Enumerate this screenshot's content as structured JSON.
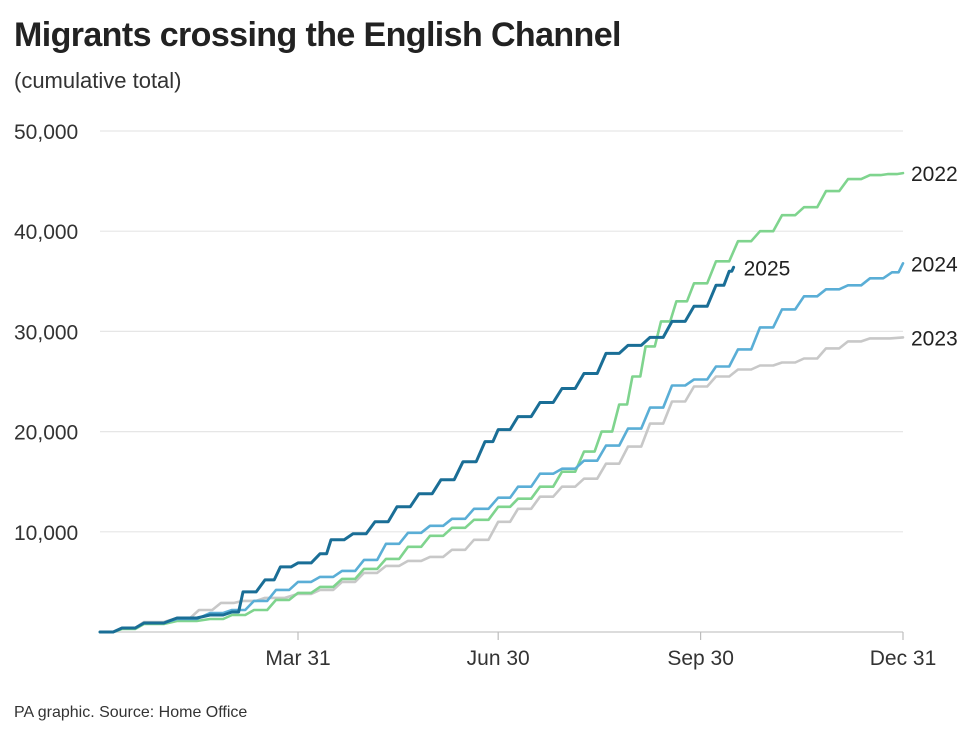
{
  "chart": {
    "title": "Migrants crossing the English Channel",
    "subtitle": "(cumulative total)",
    "source": "PA graphic. Source: Home Office"
  },
  "chart_data": {
    "type": "line",
    "title": "Migrants crossing the English Channel",
    "subtitle": "(cumulative total)",
    "xlabel": "",
    "ylabel": "",
    "xlim": [
      0,
      365
    ],
    "ylim": [
      0,
      50000
    ],
    "x_ticks": [
      {
        "label": "Mar 31",
        "day": 90
      },
      {
        "label": "Jun 30",
        "day": 181
      },
      {
        "label": "Sep 30",
        "day": 273
      },
      {
        "label": "Dec 31",
        "day": 365
      }
    ],
    "y_ticks": [
      10000,
      20000,
      30000,
      40000,
      50000
    ],
    "y_tick_labels": [
      "10,000",
      "20,000",
      "30,000",
      "40,000",
      "50,000"
    ],
    "grid": "horizontal",
    "legend": "direct labels at line ends",
    "x_unit": "day of year",
    "series": [
      {
        "name": "2022",
        "color": "#7fd48e",
        "points": [
          [
            0,
            0
          ],
          [
            10,
            300
          ],
          [
            20,
            800
          ],
          [
            35,
            1100
          ],
          [
            50,
            1300
          ],
          [
            60,
            1700
          ],
          [
            70,
            2200
          ],
          [
            80,
            3200
          ],
          [
            90,
            3900
          ],
          [
            100,
            4500
          ],
          [
            110,
            5300
          ],
          [
            120,
            6300
          ],
          [
            130,
            7300
          ],
          [
            140,
            8500
          ],
          [
            150,
            9600
          ],
          [
            160,
            10400
          ],
          [
            170,
            11200
          ],
          [
            181,
            12500
          ],
          [
            190,
            13300
          ],
          [
            200,
            14500
          ],
          [
            210,
            16000
          ],
          [
            220,
            18000
          ],
          [
            228,
            20000
          ],
          [
            236,
            22700
          ],
          [
            242,
            25500
          ],
          [
            248,
            28500
          ],
          [
            255,
            31000
          ],
          [
            262,
            33000
          ],
          [
            270,
            34800
          ],
          [
            280,
            37000
          ],
          [
            290,
            39000
          ],
          [
            300,
            40000
          ],
          [
            310,
            41600
          ],
          [
            320,
            42400
          ],
          [
            330,
            44000
          ],
          [
            340,
            45200
          ],
          [
            350,
            45600
          ],
          [
            358,
            45700
          ],
          [
            365,
            45800
          ]
        ]
      },
      {
        "name": "2023",
        "color": "#c8c8c8",
        "points": [
          [
            0,
            0
          ],
          [
            10,
            400
          ],
          [
            20,
            1000
          ],
          [
            35,
            1400
          ],
          [
            45,
            2200
          ],
          [
            55,
            2900
          ],
          [
            65,
            3100
          ],
          [
            75,
            3400
          ],
          [
            90,
            3800
          ],
          [
            100,
            4200
          ],
          [
            110,
            5000
          ],
          [
            120,
            5900
          ],
          [
            130,
            6600
          ],
          [
            140,
            7100
          ],
          [
            150,
            7500
          ],
          [
            160,
            8200
          ],
          [
            170,
            9200
          ],
          [
            181,
            11000
          ],
          [
            190,
            12300
          ],
          [
            200,
            13500
          ],
          [
            210,
            14500
          ],
          [
            220,
            15300
          ],
          [
            230,
            16800
          ],
          [
            240,
            18500
          ],
          [
            250,
            20800
          ],
          [
            260,
            23000
          ],
          [
            270,
            24500
          ],
          [
            280,
            25500
          ],
          [
            290,
            26200
          ],
          [
            300,
            26600
          ],
          [
            310,
            26900
          ],
          [
            320,
            27300
          ],
          [
            330,
            28300
          ],
          [
            340,
            29000
          ],
          [
            350,
            29300
          ],
          [
            365,
            29400
          ]
        ]
      },
      {
        "name": "2024",
        "color": "#5aaed6",
        "points": [
          [
            0,
            0
          ],
          [
            10,
            400
          ],
          [
            20,
            900
          ],
          [
            35,
            1300
          ],
          [
            50,
            1900
          ],
          [
            60,
            2200
          ],
          [
            70,
            3100
          ],
          [
            80,
            4200
          ],
          [
            90,
            5000
          ],
          [
            100,
            5500
          ],
          [
            110,
            6100
          ],
          [
            120,
            7200
          ],
          [
            130,
            8800
          ],
          [
            140,
            9900
          ],
          [
            150,
            10600
          ],
          [
            160,
            11300
          ],
          [
            170,
            12300
          ],
          [
            181,
            13400
          ],
          [
            190,
            14500
          ],
          [
            200,
            15800
          ],
          [
            210,
            16300
          ],
          [
            220,
            17100
          ],
          [
            230,
            18600
          ],
          [
            240,
            20300
          ],
          [
            250,
            22400
          ],
          [
            260,
            24600
          ],
          [
            270,
            25200
          ],
          [
            280,
            26500
          ],
          [
            290,
            28200
          ],
          [
            300,
            30400
          ],
          [
            310,
            32200
          ],
          [
            320,
            33500
          ],
          [
            330,
            34200
          ],
          [
            340,
            34600
          ],
          [
            350,
            35300
          ],
          [
            360,
            35900
          ],
          [
            365,
            36800
          ]
        ]
      },
      {
        "name": "2025",
        "color": "#1a6e96",
        "points": [
          [
            0,
            0
          ],
          [
            10,
            400
          ],
          [
            20,
            900
          ],
          [
            35,
            1400
          ],
          [
            50,
            1700
          ],
          [
            60,
            2000
          ],
          [
            65,
            4000
          ],
          [
            75,
            5200
          ],
          [
            82,
            6500
          ],
          [
            90,
            6900
          ],
          [
            100,
            7800
          ],
          [
            105,
            9200
          ],
          [
            115,
            9800
          ],
          [
            125,
            11000
          ],
          [
            135,
            12500
          ],
          [
            145,
            13800
          ],
          [
            155,
            15200
          ],
          [
            165,
            17000
          ],
          [
            175,
            19000
          ],
          [
            181,
            20200
          ],
          [
            190,
            21500
          ],
          [
            200,
            22900
          ],
          [
            210,
            24300
          ],
          [
            220,
            25800
          ],
          [
            230,
            27800
          ],
          [
            240,
            28600
          ],
          [
            250,
            29400
          ],
          [
            260,
            31000
          ],
          [
            270,
            32500
          ],
          [
            280,
            34600
          ],
          [
            286,
            36000
          ],
          [
            288,
            36400
          ]
        ]
      }
    ]
  }
}
